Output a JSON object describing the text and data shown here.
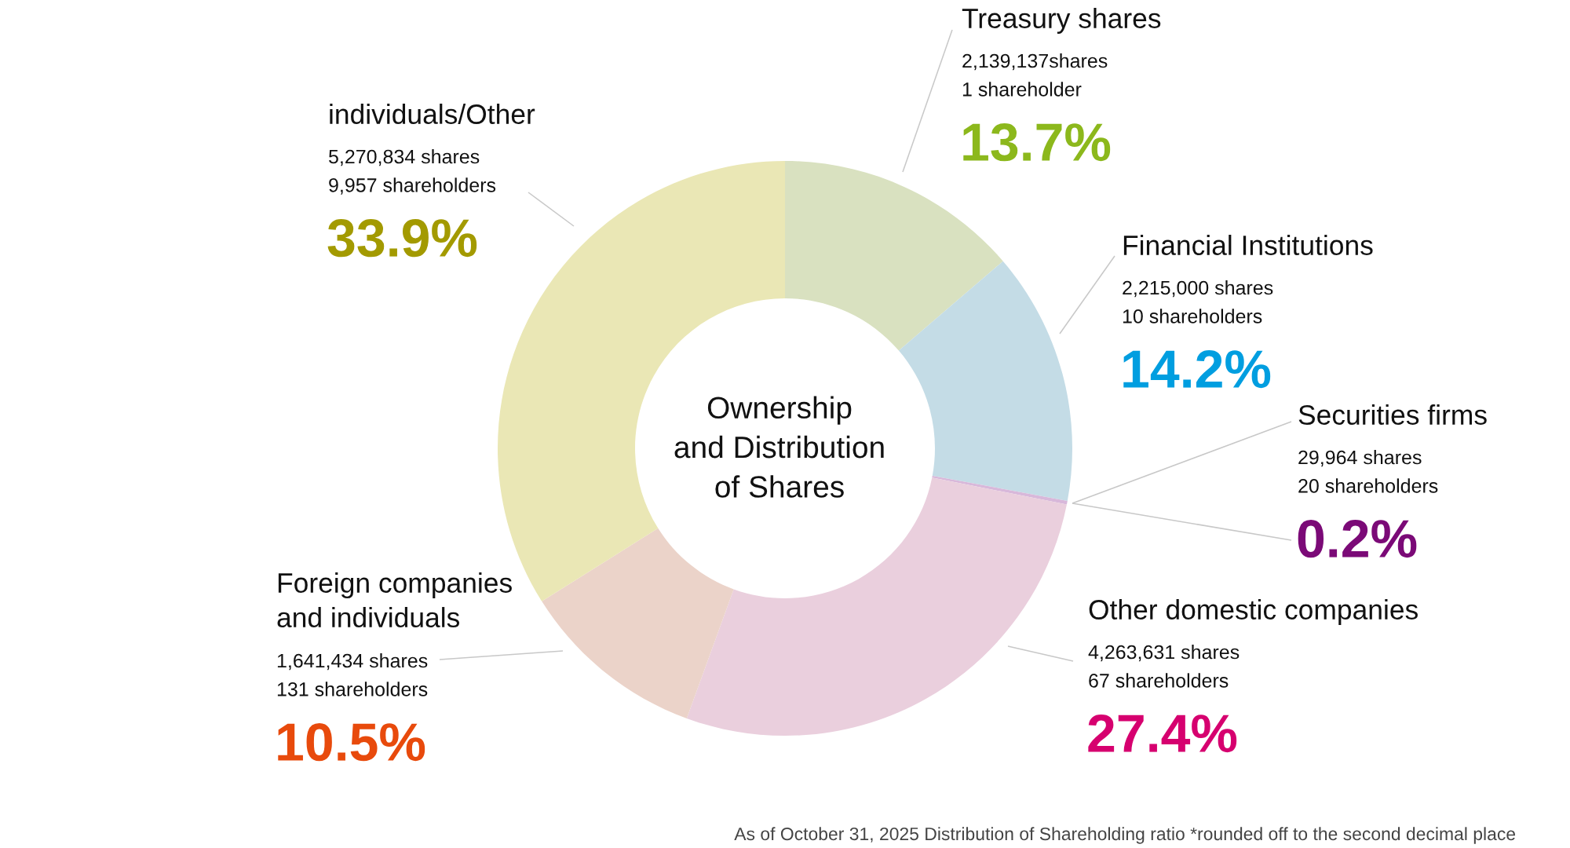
{
  "chart_data": {
    "type": "donut",
    "title": "Ownership\nand Distribution\nof Shares",
    "categories": [
      "Treasury shares",
      "Financial Institutions",
      "Securities firms",
      "Other domestic companies",
      "Foreign companies\nand individuals",
      "individuals/Other"
    ],
    "values": [
      13.7,
      14.2,
      0.2,
      27.4,
      10.5,
      33.9
    ],
    "colors": [
      "#d9e1c0",
      "#c4dce6",
      "#d8b8da",
      "#eacfdd",
      "#ebd3c9",
      "#eae7b5"
    ],
    "value_labels": [
      "13.7%",
      "14.2%",
      "0.2%",
      "27.4%",
      "10.5%",
      "33.9%"
    ],
    "annotations": [
      "2,139,137shares\n1 shareholder",
      "2,215,000 shares\n10 shareholders",
      "29,964 shares\n20 shareholders",
      "4,263,631 shares\n67 shareholders",
      "1,641,434 shares\n131 shareholders",
      "5,270,834 shares\n9,957 shareholders",
      "As of October 31, 2025 Distribution of Shareholding ratio *rounded off to the second decimal place"
    ]
  }
}
